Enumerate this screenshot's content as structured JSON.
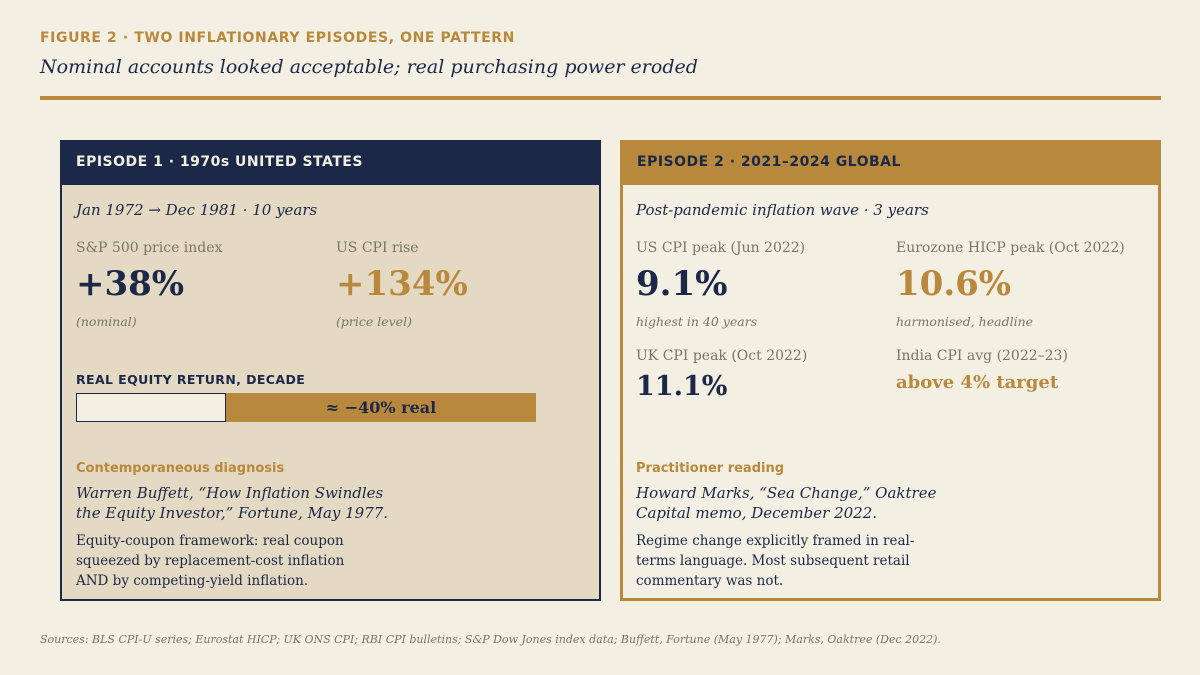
{
  "figure": {
    "eyebrow": "FIGURE 2  ·  TWO INFLATIONARY EPISODES, ONE PATTERN",
    "headline": "Nominal accounts looked acceptable; real purchasing power eroded"
  },
  "episode1": {
    "header": "EPISODE 1  ·  1970s UNITED STATES",
    "period": "Jan 1972 → Dec 1981 · 10 years",
    "stats": [
      {
        "label": "S&P 500 price index",
        "value": "+38%",
        "note": "(nominal)"
      },
      {
        "label": "US CPI rise",
        "value": "+134%",
        "note": "(price level)"
      }
    ],
    "bar": {
      "title": "REAL EQUITY RETURN, DECADE",
      "label": "≈ −40% real",
      "real_return_pct": -40
    },
    "section_label": "Contemporaneous diagnosis",
    "quote": "Warren Buffett, “How Inflation Swindles the Equity Investor,” Fortune, May 1977.",
    "body": "Equity-coupon framework: real coupon squeezed by replacement-cost inflation AND by competing-yield inflation."
  },
  "episode2": {
    "header": "EPISODE 2  ·  2021–2024 GLOBAL",
    "period": "Post-pandemic inflation wave · 3 years",
    "stats": [
      {
        "label": "US CPI peak (Jun 2022)",
        "value": "9.1%",
        "note": "highest in 40 years"
      },
      {
        "label": "Eurozone HICP peak (Oct 2022)",
        "value": "10.6%",
        "note": "harmonised, headline"
      },
      {
        "label": "UK CPI peak (Oct 2022)",
        "value": "11.1%"
      },
      {
        "label": "India CPI avg (2022–23)",
        "value": "above 4% target"
      }
    ],
    "section_label": "Practitioner reading",
    "quote": "Howard Marks, “Sea Change,” Oaktree Capital memo, December 2022.",
    "body": "Regime change explicitly framed in real-terms language. Most subsequent retail commentary was not."
  },
  "sources": "Sources: BLS CPI-U series; Eurostat HICP; UK ONS CPI; RBI CPI bulletins; S&P Dow Jones index data; Buffett, Fortune (May 1977); Marks, Oaktree (Dec 2022).",
  "colors": {
    "navy": "#1b2847",
    "gold": "#b8893c",
    "cream": "#f4efe3",
    "tan": "#e4d9c3"
  }
}
